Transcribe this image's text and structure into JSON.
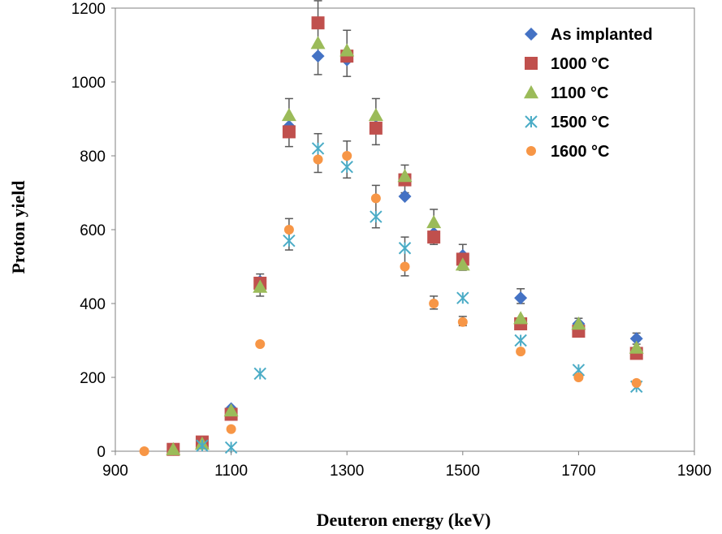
{
  "chart_data": {
    "type": "scatter",
    "xlabel": "Deuteron energy (keV)",
    "ylabel": "Proton yield",
    "xlim": [
      900,
      1900
    ],
    "ylim": [
      0,
      1200
    ],
    "xticks": [
      900,
      1100,
      1300,
      1500,
      1700,
      1900
    ],
    "yticks": [
      0,
      200,
      400,
      600,
      800,
      1000,
      1200
    ],
    "grid": false,
    "legend_position": "top-right",
    "series": [
      {
        "name": "As implanted",
        "marker": "diamond",
        "color": "#4472C4",
        "points": [
          {
            "x": 1000,
            "y": 5
          },
          {
            "x": 1050,
            "y": 20
          },
          {
            "x": 1100,
            "y": 115
          },
          {
            "x": 1150,
            "y": 460
          },
          {
            "x": 1200,
            "y": 880
          },
          {
            "x": 1250,
            "y": 1070
          },
          {
            "x": 1300,
            "y": 1060
          },
          {
            "x": 1350,
            "y": 880
          },
          {
            "x": 1400,
            "y": 690
          },
          {
            "x": 1450,
            "y": 590
          },
          {
            "x": 1500,
            "y": 530
          },
          {
            "x": 1600,
            "y": 415
          },
          {
            "x": 1700,
            "y": 345
          },
          {
            "x": 1800,
            "y": 305
          }
        ]
      },
      {
        "name": "1000 °C",
        "marker": "square",
        "color": "#C0504D",
        "points": [
          {
            "x": 1000,
            "y": 5
          },
          {
            "x": 1050,
            "y": 25
          },
          {
            "x": 1100,
            "y": 100
          },
          {
            "x": 1150,
            "y": 455
          },
          {
            "x": 1200,
            "y": 865
          },
          {
            "x": 1250,
            "y": 1160
          },
          {
            "x": 1300,
            "y": 1070
          },
          {
            "x": 1350,
            "y": 875
          },
          {
            "x": 1400,
            "y": 735
          },
          {
            "x": 1450,
            "y": 580
          },
          {
            "x": 1500,
            "y": 520
          },
          {
            "x": 1600,
            "y": 345
          },
          {
            "x": 1700,
            "y": 325
          },
          {
            "x": 1800,
            "y": 265
          }
        ]
      },
      {
        "name": "1100 °C",
        "marker": "triangle",
        "color": "#9BBB59",
        "points": [
          {
            "x": 1000,
            "y": 5
          },
          {
            "x": 1050,
            "y": 20
          },
          {
            "x": 1100,
            "y": 110
          },
          {
            "x": 1150,
            "y": 445
          },
          {
            "x": 1200,
            "y": 910
          },
          {
            "x": 1250,
            "y": 1105
          },
          {
            "x": 1300,
            "y": 1085
          },
          {
            "x": 1350,
            "y": 910
          },
          {
            "x": 1400,
            "y": 745
          },
          {
            "x": 1450,
            "y": 620
          },
          {
            "x": 1500,
            "y": 505
          },
          {
            "x": 1600,
            "y": 360
          },
          {
            "x": 1700,
            "y": 345
          },
          {
            "x": 1800,
            "y": 280
          }
        ]
      },
      {
        "name": "1500 °C",
        "marker": "star",
        "color": "#4BACC6",
        "points": [
          {
            "x": 1050,
            "y": 15
          },
          {
            "x": 1100,
            "y": 10
          },
          {
            "x": 1150,
            "y": 210
          },
          {
            "x": 1200,
            "y": 570
          },
          {
            "x": 1250,
            "y": 820
          },
          {
            "x": 1300,
            "y": 770
          },
          {
            "x": 1350,
            "y": 635
          },
          {
            "x": 1400,
            "y": 550
          },
          {
            "x": 1500,
            "y": 415
          },
          {
            "x": 1600,
            "y": 300
          },
          {
            "x": 1700,
            "y": 220
          },
          {
            "x": 1800,
            "y": 175
          }
        ]
      },
      {
        "name": "1600 °C",
        "marker": "circle",
        "color": "#F79646",
        "points": [
          {
            "x": 950,
            "y": 0
          },
          {
            "x": 1100,
            "y": 60
          },
          {
            "x": 1150,
            "y": 290
          },
          {
            "x": 1200,
            "y": 600
          },
          {
            "x": 1250,
            "y": 790
          },
          {
            "x": 1300,
            "y": 800
          },
          {
            "x": 1350,
            "y": 685
          },
          {
            "x": 1400,
            "y": 500
          },
          {
            "x": 1450,
            "y": 400
          },
          {
            "x": 1500,
            "y": 350
          },
          {
            "x": 1600,
            "y": 270
          },
          {
            "x": 1700,
            "y": 200
          },
          {
            "x": 1800,
            "y": 185
          }
        ]
      }
    ],
    "error_bars": [
      {
        "x": 1200,
        "low": 825,
        "high": 955
      },
      {
        "x": 1250,
        "low": 1020,
        "high": 1220
      },
      {
        "x": 1300,
        "low": 1015,
        "high": 1140
      },
      {
        "x": 1350,
        "low": 830,
        "high": 955
      },
      {
        "x": 1400,
        "low": 700,
        "high": 775
      },
      {
        "x": 1450,
        "low": 560,
        "high": 655
      },
      {
        "x": 1500,
        "low": 490,
        "high": 560
      },
      {
        "x": 1250,
        "low": 755,
        "high": 860
      },
      {
        "x": 1300,
        "low": 740,
        "high": 840
      },
      {
        "x": 1350,
        "low": 605,
        "high": 720
      },
      {
        "x": 1400,
        "low": 475,
        "high": 580
      },
      {
        "x": 1200,
        "low": 545,
        "high": 630
      },
      {
        "x": 1150,
        "low": 420,
        "high": 480
      },
      {
        "x": 1450,
        "low": 385,
        "high": 420
      },
      {
        "x": 1500,
        "low": 340,
        "high": 365
      },
      {
        "x": 1600,
        "low": 400,
        "high": 440
      },
      {
        "x": 1800,
        "low": 290,
        "high": 320
      },
      {
        "x": 1700,
        "low": 330,
        "high": 360
      }
    ],
    "error_bar_color": "#595959"
  }
}
